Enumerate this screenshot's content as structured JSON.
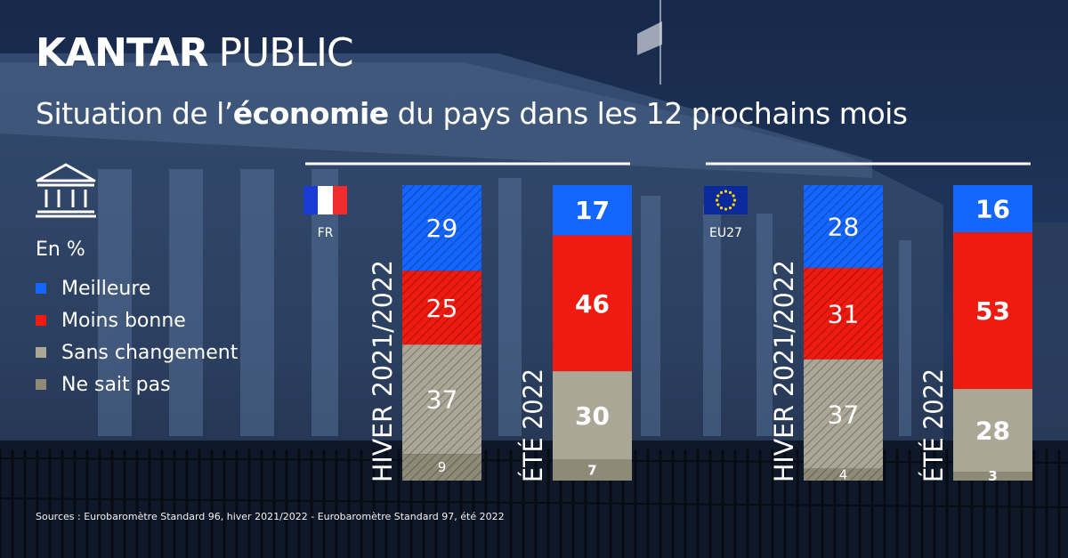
{
  "brand": {
    "part1": "KANTAR",
    "part2": "PUBLIC"
  },
  "title": {
    "before": "Situation de l’",
    "bold": "économie",
    "after": " du pays dans les 12 prochains mois"
  },
  "unit": "En %",
  "colors": {
    "meilleure": "#1565ff",
    "moins_bonne": "#ef1a10",
    "sans_changement": "#aba797",
    "ne_sait_pas": "#8e8a78",
    "background": "#1a2f52"
  },
  "legend": [
    {
      "label": "Meilleure",
      "color": "#1565ff"
    },
    {
      "label": "Moins bonne",
      "color": "#ef1a10"
    },
    {
      "label": "Sans changement",
      "color": "#aba797"
    },
    {
      "label": "Ne sait pas",
      "color": "#8e8a78"
    }
  ],
  "sources": "Sources : Eurobaromètre Standard 96, hiver 2021/2022 - Eurobaromètre Standard 97, été 2022",
  "chart_data": {
    "type": "bar",
    "stacked": true,
    "series_order": [
      "Meilleure",
      "Moins bonne",
      "Sans changement",
      "Ne sait pas"
    ],
    "groups": [
      {
        "region": "FR",
        "flag": "france",
        "bars": [
          {
            "period": "HIVER 2021/2022",
            "hatched": true,
            "values": [
              29,
              25,
              37,
              9
            ]
          },
          {
            "period": "ÉTÉ 2022",
            "hatched": false,
            "values": [
              17,
              46,
              30,
              7
            ]
          }
        ]
      },
      {
        "region": "EU27",
        "flag": "eu",
        "bars": [
          {
            "period": "HIVER 2021/2022",
            "hatched": true,
            "values": [
              28,
              31,
              37,
              4
            ]
          },
          {
            "period": "ÉTÉ 2022",
            "hatched": false,
            "values": [
              16,
              53,
              28,
              3
            ]
          }
        ]
      }
    ]
  }
}
